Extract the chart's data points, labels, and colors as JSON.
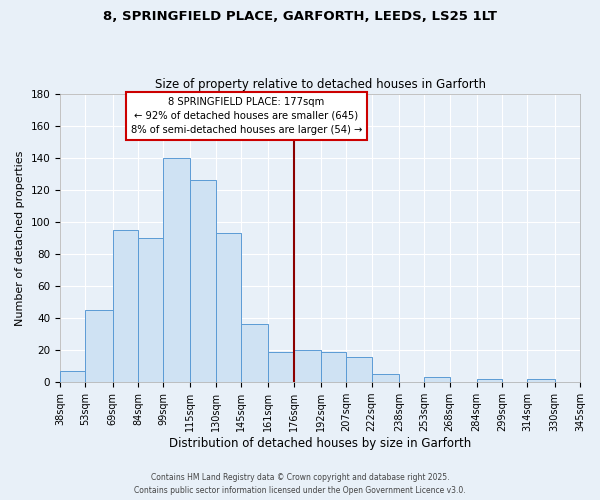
{
  "title_line1": "8, SPRINGFIELD PLACE, GARFORTH, LEEDS, LS25 1LT",
  "title_line2": "Size of property relative to detached houses in Garforth",
  "xlabel": "Distribution of detached houses by size in Garforth",
  "ylabel": "Number of detached properties",
  "bin_labels": [
    "38sqm",
    "53sqm",
    "69sqm",
    "84sqm",
    "99sqm",
    "115sqm",
    "130sqm",
    "145sqm",
    "161sqm",
    "176sqm",
    "192sqm",
    "207sqm",
    "222sqm",
    "238sqm",
    "253sqm",
    "268sqm",
    "284sqm",
    "299sqm",
    "314sqm",
    "330sqm",
    "345sqm"
  ],
  "bin_edges": [
    38,
    53,
    69,
    84,
    99,
    115,
    130,
    145,
    161,
    176,
    192,
    207,
    222,
    238,
    253,
    268,
    284,
    299,
    314,
    330,
    345
  ],
  "bar_heights": [
    7,
    45,
    95,
    90,
    140,
    126,
    93,
    36,
    19,
    20,
    19,
    16,
    5,
    0,
    3,
    0,
    2,
    0,
    2,
    0,
    1
  ],
  "bar_facecolor": "#cfe2f3",
  "bar_edgecolor": "#5b9bd5",
  "ylim": [
    0,
    180
  ],
  "yticks": [
    0,
    20,
    40,
    60,
    80,
    100,
    120,
    140,
    160,
    180
  ],
  "vline_x": 176,
  "vline_color": "#8b0000",
  "annotation_title": "8 SPRINGFIELD PLACE: 177sqm",
  "annotation_line1": "← 92% of detached houses are smaller (645)",
  "annotation_line2": "8% of semi-detached houses are larger (54) →",
  "annotation_box_facecolor": "#ffffff",
  "annotation_box_edgecolor": "#cc0000",
  "footer_line1": "Contains HM Land Registry data © Crown copyright and database right 2025.",
  "footer_line2": "Contains public sector information licensed under the Open Government Licence v3.0.",
  "background_color": "#e8f0f8",
  "plot_background": "#e8f0f8",
  "grid_color": "#ffffff"
}
